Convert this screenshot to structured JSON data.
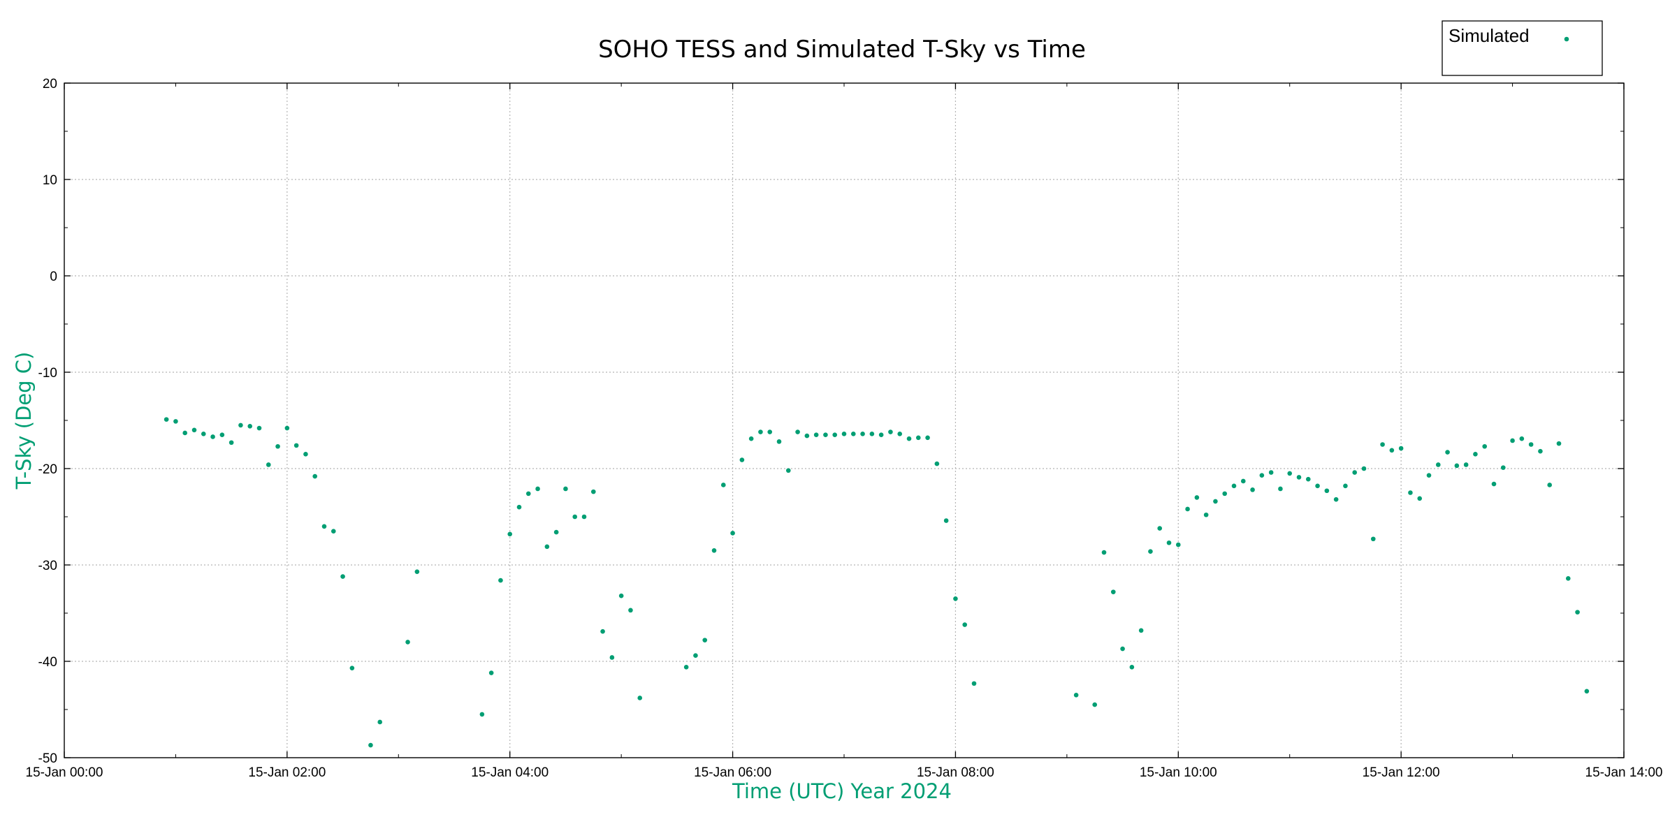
{
  "chart_data": {
    "type": "scatter",
    "title": "SOHO TESS and Simulated T-Sky vs Time",
    "xlabel": "Time (UTC)  Year 2024",
    "ylabel": "T-Sky (Deg C)",
    "xlim": [
      "2024-01-15 00:00",
      "2024-01-15 14:00"
    ],
    "ylim": [
      -50,
      20
    ],
    "x_tick_labels": [
      "15-Jan 00:00",
      "15-Jan 02:00",
      "15-Jan 04:00",
      "15-Jan 06:00",
      "15-Jan 08:00",
      "15-Jan 10:00",
      "15-Jan 12:00",
      "15-Jan 14:00"
    ],
    "y_ticks": [
      20,
      10,
      0,
      -10,
      -20,
      -30,
      -40,
      -50
    ],
    "grid": true,
    "legend_position": "top-right",
    "series": [
      {
        "name": "Simulated",
        "color": "#009e73",
        "points": [
          [
            "2024-01-15 00:55",
            -14.9
          ],
          [
            "2024-01-15 01:00",
            -15.1
          ],
          [
            "2024-01-15 01:05",
            -16.3
          ],
          [
            "2024-01-15 01:10",
            -16.0
          ],
          [
            "2024-01-15 01:15",
            -16.4
          ],
          [
            "2024-01-15 01:20",
            -16.7
          ],
          [
            "2024-01-15 01:25",
            -16.5
          ],
          [
            "2024-01-15 01:30",
            -17.3
          ],
          [
            "2024-01-15 01:35",
            -15.5
          ],
          [
            "2024-01-15 01:40",
            -15.6
          ],
          [
            "2024-01-15 01:45",
            -15.8
          ],
          [
            "2024-01-15 01:50",
            -19.6
          ],
          [
            "2024-01-15 01:55",
            -17.7
          ],
          [
            "2024-01-15 02:00",
            -15.8
          ],
          [
            "2024-01-15 02:05",
            -17.6
          ],
          [
            "2024-01-15 02:10",
            -18.5
          ],
          [
            "2024-01-15 02:15",
            -20.8
          ],
          [
            "2024-01-15 02:20",
            -26.0
          ],
          [
            "2024-01-15 02:25",
            -26.5
          ],
          [
            "2024-01-15 02:30",
            -31.2
          ],
          [
            "2024-01-15 02:35",
            -40.7
          ],
          [
            "2024-01-15 02:45",
            -48.7
          ],
          [
            "2024-01-15 02:50",
            -46.3
          ],
          [
            "2024-01-15 03:05",
            -38.0
          ],
          [
            "2024-01-15 03:10",
            -30.7
          ],
          [
            "2024-01-15 03:45",
            -45.5
          ],
          [
            "2024-01-15 03:50",
            -41.2
          ],
          [
            "2024-01-15 03:55",
            -31.6
          ],
          [
            "2024-01-15 04:00",
            -26.8
          ],
          [
            "2024-01-15 04:05",
            -24.0
          ],
          [
            "2024-01-15 04:10",
            -22.6
          ],
          [
            "2024-01-15 04:15",
            -22.1
          ],
          [
            "2024-01-15 04:20",
            -28.1
          ],
          [
            "2024-01-15 04:25",
            -26.6
          ],
          [
            "2024-01-15 04:30",
            -22.1
          ],
          [
            "2024-01-15 04:35",
            -25.0
          ],
          [
            "2024-01-15 04:40",
            -25.0
          ],
          [
            "2024-01-15 04:45",
            -22.4
          ],
          [
            "2024-01-15 04:50",
            -36.9
          ],
          [
            "2024-01-15 04:55",
            -39.6
          ],
          [
            "2024-01-15 05:00",
            -33.2
          ],
          [
            "2024-01-15 05:05",
            -34.7
          ],
          [
            "2024-01-15 05:10",
            -43.8
          ],
          [
            "2024-01-15 05:35",
            -40.6
          ],
          [
            "2024-01-15 05:40",
            -39.4
          ],
          [
            "2024-01-15 05:45",
            -37.8
          ],
          [
            "2024-01-15 05:50",
            -28.5
          ],
          [
            "2024-01-15 05:55",
            -21.7
          ],
          [
            "2024-01-15 06:00",
            -26.7
          ],
          [
            "2024-01-15 06:05",
            -19.1
          ],
          [
            "2024-01-15 06:10",
            -16.9
          ],
          [
            "2024-01-15 06:15",
            -16.2
          ],
          [
            "2024-01-15 06:20",
            -16.2
          ],
          [
            "2024-01-15 06:25",
            -17.2
          ],
          [
            "2024-01-15 06:30",
            -20.2
          ],
          [
            "2024-01-15 06:35",
            -16.2
          ],
          [
            "2024-01-15 06:40",
            -16.6
          ],
          [
            "2024-01-15 06:45",
            -16.5
          ],
          [
            "2024-01-15 06:50",
            -16.5
          ],
          [
            "2024-01-15 06:55",
            -16.5
          ],
          [
            "2024-01-15 07:00",
            -16.4
          ],
          [
            "2024-01-15 07:05",
            -16.4
          ],
          [
            "2024-01-15 07:10",
            -16.4
          ],
          [
            "2024-01-15 07:15",
            -16.4
          ],
          [
            "2024-01-15 07:20",
            -16.5
          ],
          [
            "2024-01-15 07:25",
            -16.2
          ],
          [
            "2024-01-15 07:30",
            -16.4
          ],
          [
            "2024-01-15 07:35",
            -16.9
          ],
          [
            "2024-01-15 07:40",
            -16.8
          ],
          [
            "2024-01-15 07:45",
            -16.8
          ],
          [
            "2024-01-15 07:50",
            -19.5
          ],
          [
            "2024-01-15 07:55",
            -25.4
          ],
          [
            "2024-01-15 08:00",
            -33.5
          ],
          [
            "2024-01-15 08:05",
            -36.2
          ],
          [
            "2024-01-15 08:10",
            -42.3
          ],
          [
            "2024-01-15 09:05",
            -43.5
          ],
          [
            "2024-01-15 09:15",
            -44.5
          ],
          [
            "2024-01-15 09:20",
            -28.7
          ],
          [
            "2024-01-15 09:25",
            -32.8
          ],
          [
            "2024-01-15 09:30",
            -38.7
          ],
          [
            "2024-01-15 09:35",
            -40.6
          ],
          [
            "2024-01-15 09:40",
            -36.8
          ],
          [
            "2024-01-15 09:45",
            -28.6
          ],
          [
            "2024-01-15 09:50",
            -26.2
          ],
          [
            "2024-01-15 09:55",
            -27.7
          ],
          [
            "2024-01-15 10:00",
            -27.9
          ],
          [
            "2024-01-15 10:05",
            -24.2
          ],
          [
            "2024-01-15 10:10",
            -23.0
          ],
          [
            "2024-01-15 10:15",
            -24.8
          ],
          [
            "2024-01-15 10:20",
            -23.4
          ],
          [
            "2024-01-15 10:25",
            -22.6
          ],
          [
            "2024-01-15 10:30",
            -21.8
          ],
          [
            "2024-01-15 10:35",
            -21.3
          ],
          [
            "2024-01-15 10:40",
            -22.2
          ],
          [
            "2024-01-15 10:45",
            -20.7
          ],
          [
            "2024-01-15 10:50",
            -20.4
          ],
          [
            "2024-01-15 10:55",
            -22.1
          ],
          [
            "2024-01-15 11:00",
            -20.5
          ],
          [
            "2024-01-15 11:05",
            -20.9
          ],
          [
            "2024-01-15 11:10",
            -21.1
          ],
          [
            "2024-01-15 11:15",
            -21.8
          ],
          [
            "2024-01-15 11:20",
            -22.3
          ],
          [
            "2024-01-15 11:25",
            -23.2
          ],
          [
            "2024-01-15 11:30",
            -21.8
          ],
          [
            "2024-01-15 11:35",
            -20.4
          ],
          [
            "2024-01-15 11:40",
            -20.0
          ],
          [
            "2024-01-15 11:45",
            -27.3
          ],
          [
            "2024-01-15 11:50",
            -17.5
          ],
          [
            "2024-01-15 11:55",
            -18.1
          ],
          [
            "2024-01-15 12:00",
            -17.9
          ],
          [
            "2024-01-15 12:05",
            -22.5
          ],
          [
            "2024-01-15 12:10",
            -23.1
          ],
          [
            "2024-01-15 12:15",
            -20.7
          ],
          [
            "2024-01-15 12:20",
            -19.6
          ],
          [
            "2024-01-15 12:25",
            -18.3
          ],
          [
            "2024-01-15 12:30",
            -19.7
          ],
          [
            "2024-01-15 12:35",
            -19.6
          ],
          [
            "2024-01-15 12:40",
            -18.5
          ],
          [
            "2024-01-15 12:45",
            -17.7
          ],
          [
            "2024-01-15 12:50",
            -21.6
          ],
          [
            "2024-01-15 12:55",
            -19.9
          ],
          [
            "2024-01-15 13:00",
            -17.1
          ],
          [
            "2024-01-15 13:05",
            -16.9
          ],
          [
            "2024-01-15 13:10",
            -17.5
          ],
          [
            "2024-01-15 13:15",
            -18.2
          ],
          [
            "2024-01-15 13:20",
            -21.7
          ],
          [
            "2024-01-15 13:25",
            -17.4
          ],
          [
            "2024-01-15 13:30",
            -31.4
          ],
          [
            "2024-01-15 13:35",
            -34.9
          ],
          [
            "2024-01-15 13:40",
            -43.1
          ]
        ]
      }
    ]
  }
}
